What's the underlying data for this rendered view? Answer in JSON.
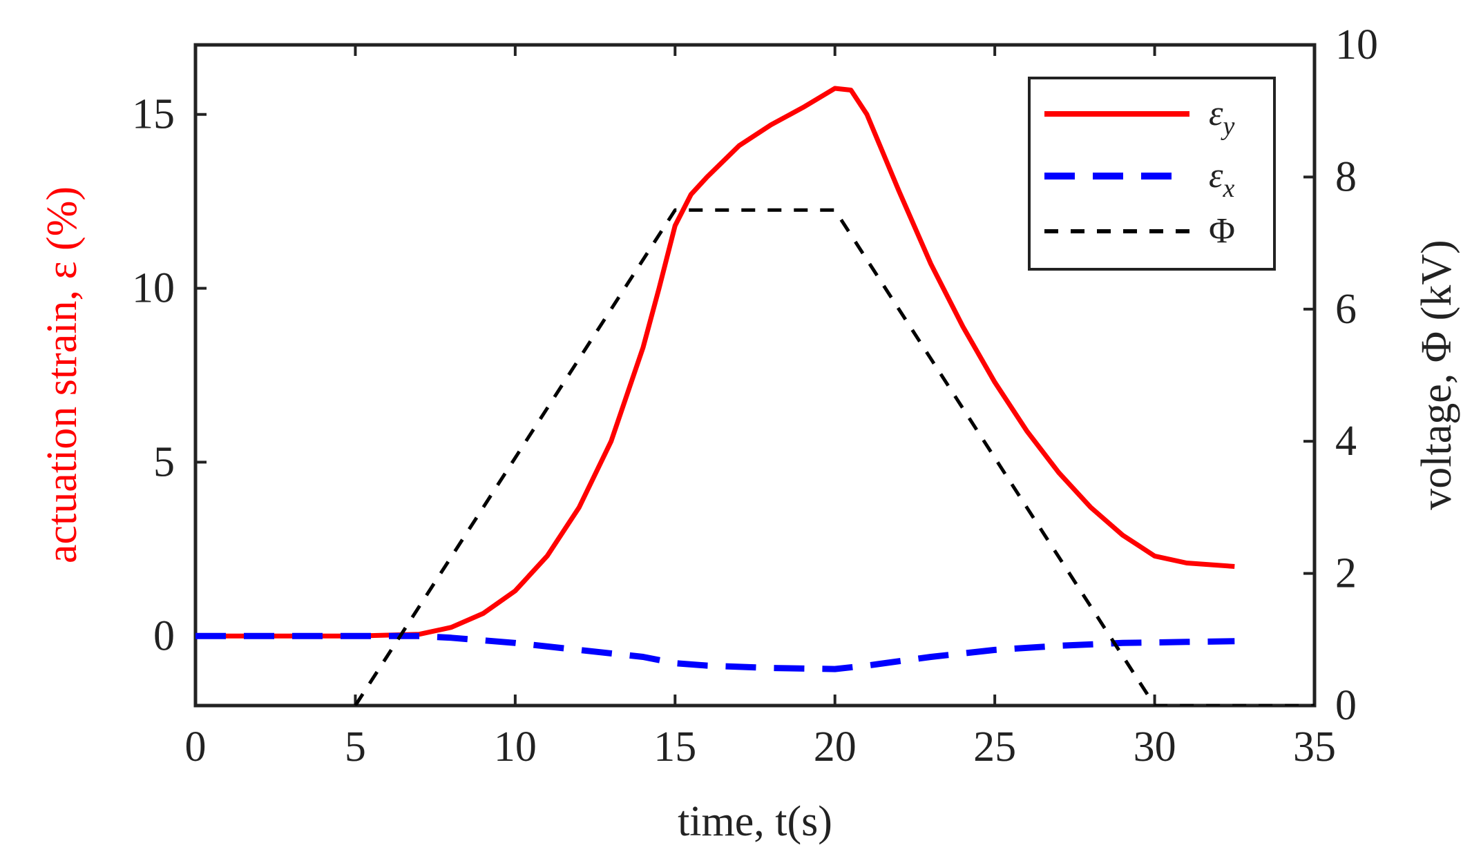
{
  "chart_data": {
    "type": "line",
    "title": "",
    "xlabel": "time, t(s)",
    "ylabel_left": "actuation strain, ε (%)",
    "ylabel_right": "voltage, Φ (kV)",
    "xlim": [
      0,
      35
    ],
    "ylim_left": [
      -2,
      17
    ],
    "ylim_right": [
      0,
      10
    ],
    "x_ticks": [
      "0",
      "5",
      "10",
      "15",
      "20",
      "25",
      "30",
      "35"
    ],
    "y_left_ticks": [
      "0",
      "5",
      "10",
      "15"
    ],
    "y_right_ticks": [
      "0",
      "2",
      "4",
      "6",
      "8",
      "10"
    ],
    "grid": false,
    "legend_position": "top-right",
    "colors": {
      "ylabel_left": "#ff0000",
      "ylabel_right": "#222222",
      "axes": "#222222"
    },
    "series": [
      {
        "name": "ε_y",
        "legend_main": "ε",
        "legend_sub": "y",
        "axis": "left",
        "color": "#ff0000",
        "style": "solid",
        "x": [
          0,
          5,
          7,
          8,
          9,
          10,
          11,
          12,
          13,
          14,
          14.5,
          15,
          15.5,
          16,
          17,
          18,
          19,
          20,
          20.5,
          21,
          22,
          23,
          24,
          25,
          26,
          27,
          28,
          29,
          30,
          31,
          32.5
        ],
        "y": [
          0,
          0,
          0.05,
          0.25,
          0.65,
          1.3,
          2.3,
          3.7,
          5.6,
          8.3,
          10.0,
          11.8,
          12.7,
          13.2,
          14.1,
          14.7,
          15.2,
          15.75,
          15.7,
          15.0,
          12.8,
          10.7,
          8.9,
          7.3,
          5.9,
          4.7,
          3.7,
          2.9,
          2.3,
          2.1,
          2.0
        ]
      },
      {
        "name": "ε_x",
        "legend_main": "ε",
        "legend_sub": "x",
        "axis": "left",
        "color": "#0000ff",
        "style": "dashed",
        "x": [
          0,
          5,
          7,
          8,
          10,
          12,
          14,
          15,
          16,
          18,
          20,
          21,
          23,
          25,
          27,
          29,
          31,
          32.5
        ],
        "y": [
          0,
          0,
          0,
          -0.05,
          -0.2,
          -0.4,
          -0.6,
          -0.78,
          -0.85,
          -0.92,
          -0.95,
          -0.85,
          -0.6,
          -0.4,
          -0.28,
          -0.2,
          -0.17,
          -0.15
        ]
      },
      {
        "name": "Φ",
        "legend_main": "Φ",
        "legend_sub": "",
        "axis": "right",
        "color": "#000000",
        "style": "short-dashed",
        "x": [
          5,
          15,
          20,
          30,
          35
        ],
        "y": [
          0,
          7.5,
          7.5,
          0,
          0
        ]
      }
    ]
  }
}
